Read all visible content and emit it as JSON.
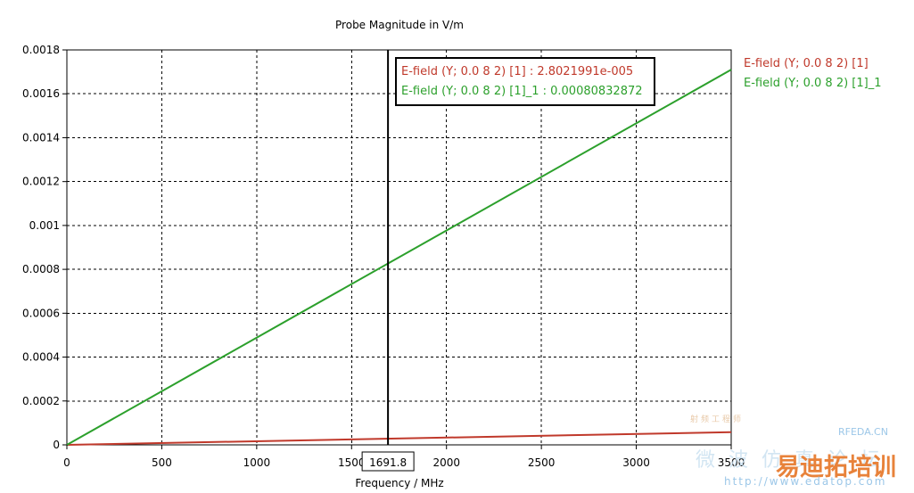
{
  "chart_data": {
    "type": "line",
    "title": "Probe Magnitude in V/m",
    "xlabel": "Frequency / MHz",
    "ylabel": "",
    "xlim": [
      0,
      3500
    ],
    "ylim": [
      0,
      0.0018
    ],
    "x_ticks": [
      0,
      500,
      1000,
      1500,
      2000,
      2500,
      3000,
      3500
    ],
    "x_tick_labels": [
      "0",
      "500",
      "1000",
      "1500",
      "2000",
      "2500",
      "3000",
      "3500"
    ],
    "y_ticks": [
      0,
      0.0002,
      0.0004,
      0.0006,
      0.0008,
      0.001,
      0.0012,
      0.0014,
      0.0016,
      0.0018
    ],
    "y_tick_labels": [
      "0",
      "0.0002",
      "0.0004",
      "0.0006",
      "0.0008",
      "0.001",
      "0.0012",
      "0.0014",
      "0.0016",
      "0.0018"
    ],
    "grid": true,
    "legend_position": "right",
    "series": [
      {
        "name": "E-field (Y; 0.0 8 2) [1]",
        "color": "#c0392b",
        "x": [
          0,
          3500
        ],
        "y": [
          0,
          5.8e-05
        ]
      },
      {
        "name": "E-field (Y; 0.0 8 2) [1]_1",
        "color": "#2ca02c",
        "x": [
          0,
          3500
        ],
        "y": [
          0,
          0.00171
        ]
      }
    ],
    "marker": {
      "x": 1691.8,
      "x_label": "1691.8",
      "readouts": [
        {
          "text": "E-field (Y; 0.0 8 2) [1] : 2.8021991e-005",
          "color": "#c0392b"
        },
        {
          "text": "E-field (Y; 0.0 8 2) [1]_1 : 0.00080832872",
          "color": "#2ca02c"
        }
      ]
    }
  },
  "watermark": {
    "brand": "RFEDA.CN",
    "name": "易迪拓培训",
    "url": "http://www.edatop.com",
    "line": "微 波 仿 真 论 坛",
    "sub": "射频工程师"
  }
}
